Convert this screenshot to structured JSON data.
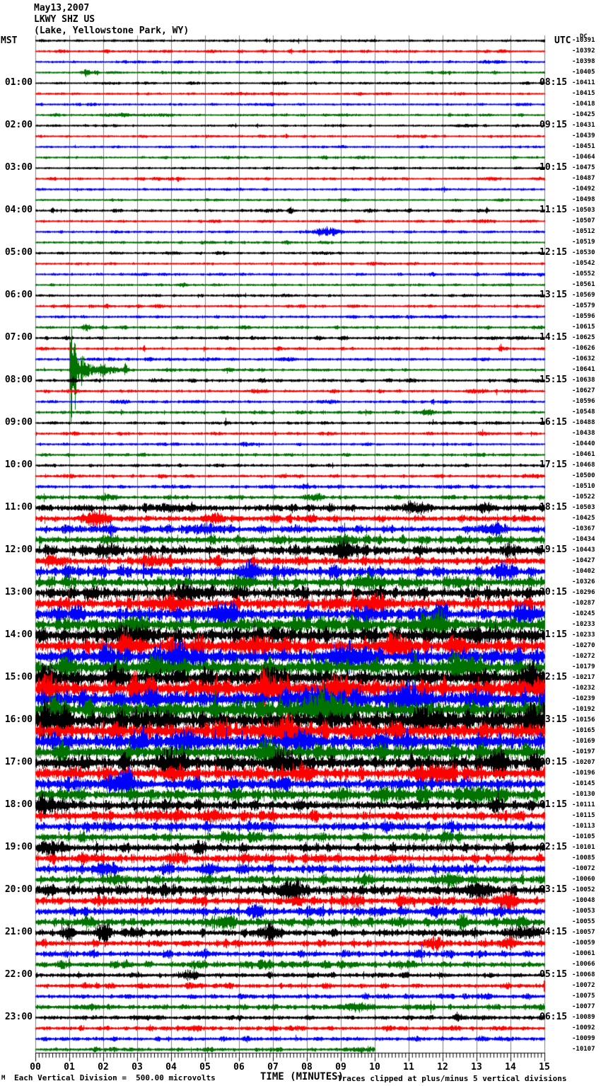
{
  "header": {
    "date": "May13,2007",
    "station": "LKWY SHZ US",
    "location": "(Lake, Yellowstone Park, WY)"
  },
  "axis": {
    "left_label": "MST",
    "right_label": "UTC",
    "dc_label": "DC",
    "x_title": "TIME (MINUTES)",
    "minute_labels": [
      "00",
      "01",
      "02",
      "03",
      "04",
      "05",
      "06",
      "07",
      "08",
      "09",
      "10",
      "11",
      "12",
      "13",
      "14",
      "15"
    ]
  },
  "footer": {
    "corner_mark": "M",
    "scale_note": "Each Vertical Division =  500.00 microvolts",
    "clip_note": "Traces clipped at plus/minus 5 vertical divisions"
  },
  "chart_data": {
    "type": "line",
    "subtype": "helicorder-seismogram",
    "title": "LKWY SHZ US webicorder, May 13 2007",
    "minutes_per_line": 15,
    "lines_per_hour": 4,
    "color_cycle": [
      "black",
      "red",
      "blue",
      "green"
    ],
    "clip_divisions": 5,
    "microvolts_per_division": 500.0,
    "colors": {
      "k": "#000000",
      "r": "#ff0000",
      "b": "#0000ff",
      "g": "#007200",
      "grid": "#808080"
    },
    "row_fields": [
      "color",
      "mst_label",
      "utc_label",
      "dc_value",
      "noise_amplitude_px",
      "events[minute,amp_px,width_min]",
      "end_minute"
    ],
    "rows": [
      [
        "k",
        null,
        null,
        "-10391",
        1.3,
        [
          [
            6.8,
            3,
            0.02
          ]
        ],
        15
      ],
      [
        "r",
        null,
        null,
        "-10392",
        1.3,
        [
          [
            2.1,
            2.5,
            0.02
          ]
        ],
        15
      ],
      [
        "b",
        null,
        null,
        "-10398",
        1.3,
        [],
        15
      ],
      [
        "g",
        null,
        null,
        "-10405",
        1.3,
        [
          [
            1.5,
            3,
            0.08
          ],
          [
            1.8,
            2.5,
            0.05
          ],
          [
            12.2,
            2,
            0.03
          ]
        ],
        15
      ],
      [
        "k",
        "01:00",
        "08:15",
        "-10411",
        1.2,
        [],
        15
      ],
      [
        "r",
        null,
        null,
        "-10415",
        1.2,
        [],
        15
      ],
      [
        "b",
        null,
        null,
        "-10418",
        1.2,
        [],
        15
      ],
      [
        "g",
        null,
        null,
        "-10425",
        1.3,
        [
          [
            12.2,
            2.5,
            0.03
          ]
        ],
        15
      ],
      [
        "k",
        "02:00",
        "09:15",
        "-10431",
        1.2,
        [],
        15
      ],
      [
        "r",
        null,
        null,
        "-10439",
        1.3,
        [
          [
            7.4,
            3,
            0.02
          ]
        ],
        15
      ],
      [
        "b",
        null,
        null,
        "-10451",
        1.2,
        [],
        15
      ],
      [
        "g",
        null,
        null,
        "-10464",
        1.3,
        [],
        15
      ],
      [
        "k",
        "03:00",
        "10:15",
        "-10475",
        1.2,
        [],
        15
      ],
      [
        "r",
        null,
        null,
        "-10487",
        1.3,
        [
          [
            4.2,
            2.5,
            0.03
          ]
        ],
        15
      ],
      [
        "b",
        null,
        null,
        "-10492",
        1.2,
        [],
        15
      ],
      [
        "g",
        null,
        null,
        "-10498",
        1.2,
        [],
        15
      ],
      [
        "k",
        "04:00",
        "11:15",
        "-10503",
        1.5,
        [
          [
            0.5,
            4,
            0.03
          ],
          [
            7.5,
            4.5,
            0.04
          ],
          [
            13.3,
            3,
            0.03
          ]
        ],
        15
      ],
      [
        "r",
        null,
        null,
        "-10507",
        1.3,
        [],
        15
      ],
      [
        "b",
        null,
        null,
        "-10512",
        1.3,
        [
          [
            8.6,
            4.5,
            0.28
          ]
        ],
        15
      ],
      [
        "g",
        null,
        null,
        "-10519",
        1.3,
        [],
        15
      ],
      [
        "k",
        "05:00",
        "12:15",
        "-10530",
        1.3,
        [],
        15
      ],
      [
        "r",
        null,
        null,
        "-10542",
        1.3,
        [],
        15
      ],
      [
        "b",
        null,
        null,
        "-10552",
        1.3,
        [
          [
            11.7,
            2.5,
            0.05
          ]
        ],
        15
      ],
      [
        "g",
        null,
        null,
        "-10561",
        1.3,
        [],
        15
      ],
      [
        "k",
        "06:00",
        "13:15",
        "-10569",
        1.3,
        [],
        15
      ],
      [
        "r",
        null,
        null,
        "-10579",
        1.4,
        [
          [
            2.1,
            3.5,
            0.02
          ]
        ],
        15
      ],
      [
        "b",
        null,
        null,
        "-10596",
        1.6,
        [],
        15
      ],
      [
        "g",
        null,
        null,
        "-10615",
        1.5,
        [
          [
            1.5,
            2.5,
            0.1
          ]
        ],
        15
      ],
      [
        "k",
        "07:00",
        "14:15",
        "-10625",
        1.6,
        [],
        15
      ],
      [
        "r",
        null,
        null,
        "-10626",
        1.5,
        [
          [
            3.2,
            4.5,
            0.02
          ],
          [
            13.7,
            5,
            0.03
          ]
        ],
        15
      ],
      [
        "b",
        null,
        null,
        "-10632",
        1.5,
        [],
        15
      ],
      [
        "g",
        null,
        null,
        "-10641",
        1.6,
        [
          [
            1.05,
            85,
            0.02
          ],
          [
            1.15,
            55,
            0.03
          ],
          [
            1.35,
            14,
            0.12
          ],
          [
            1.9,
            6,
            0.3
          ],
          [
            2.65,
            7,
            0.05
          ]
        ],
        15
      ],
      [
        "k",
        "08:00",
        "15:15",
        "-10638",
        1.8,
        [
          [
            1.1,
            4,
            0.06
          ]
        ],
        15
      ],
      [
        "r",
        null,
        null,
        "-10627",
        1.6,
        [],
        15
      ],
      [
        "b",
        null,
        null,
        "-10596",
        1.5,
        [
          [
            11.7,
            4,
            0.03
          ]
        ],
        15
      ],
      [
        "g",
        null,
        null,
        "-10548",
        1.6,
        [
          [
            11.6,
            3,
            0.15
          ]
        ],
        15
      ],
      [
        "k",
        "09:00",
        "16:15",
        "-10488",
        1.5,
        [
          [
            5.6,
            5,
            0.025
          ]
        ],
        15
      ],
      [
        "r",
        null,
        null,
        "-10438",
        1.6,
        [],
        15
      ],
      [
        "b",
        null,
        null,
        "-10440",
        1.5,
        [],
        15
      ],
      [
        "g",
        null,
        null,
        "-10461",
        1.5,
        [],
        15
      ],
      [
        "k",
        "10:00",
        "17:15",
        "-10468",
        1.7,
        [],
        15
      ],
      [
        "r",
        null,
        null,
        "-10500",
        1.7,
        [],
        15
      ],
      [
        "b",
        null,
        null,
        "-10510",
        1.7,
        [],
        15
      ],
      [
        "g",
        null,
        null,
        "-10522",
        2.2,
        [
          [
            2.0,
            2,
            0.2
          ]
        ],
        15
      ],
      [
        "k",
        "11:00",
        "18:15",
        "-10503",
        4.0,
        [
          [
            3.9,
            4,
            0.3
          ],
          [
            11.2,
            5,
            0.3
          ],
          [
            13.2,
            4,
            0.2
          ]
        ],
        15
      ],
      [
        "r",
        null,
        null,
        "-10425",
        4.2,
        [
          [
            1.8,
            7,
            0.25
          ],
          [
            5.3,
            5,
            0.2
          ]
        ],
        15
      ],
      [
        "b",
        null,
        null,
        "-10367",
        4.2,
        [
          [
            2.2,
            6,
            0.1
          ],
          [
            5.0,
            5,
            0.3
          ],
          [
            13.5,
            5,
            0.2
          ]
        ],
        15
      ],
      [
        "g",
        null,
        null,
        "-10434",
        4.8,
        [
          [
            9.0,
            4,
            0.3
          ]
        ],
        15
      ],
      [
        "k",
        "12:00",
        "19:15",
        "-10443",
        5.5,
        [
          [
            2.0,
            5,
            0.3
          ],
          [
            9.0,
            5,
            0.4
          ],
          [
            14.0,
            5,
            0.2
          ]
        ],
        15
      ],
      [
        "r",
        null,
        null,
        "-10427",
        5.5,
        [
          [
            0.5,
            5,
            0.2
          ],
          [
            3.5,
            5,
            0.3
          ]
        ],
        15
      ],
      [
        "b",
        null,
        null,
        "-10402",
        6.5,
        [
          [
            6.3,
            8,
            0.25
          ],
          [
            13.8,
            6,
            0.2
          ]
        ],
        15
      ],
      [
        "g",
        null,
        null,
        "-10326",
        6.5,
        [
          [
            6.0,
            6,
            0.2
          ],
          [
            9.9,
            6,
            0.3
          ]
        ],
        15
      ],
      [
        "k",
        "13:00",
        "20:15",
        "-10296",
        7.5,
        [
          [
            4.5,
            6,
            0.3
          ]
        ],
        15
      ],
      [
        "r",
        null,
        null,
        "-10287",
        7.5,
        [
          [
            4.0,
            8,
            0.3
          ],
          [
            10.0,
            8,
            0.3
          ]
        ],
        15
      ],
      [
        "b",
        null,
        null,
        "-10245",
        8.5,
        [
          [
            5.5,
            8,
            0.3
          ],
          [
            14.5,
            8,
            0.2
          ]
        ],
        15
      ],
      [
        "g",
        null,
        null,
        "-10233",
        8.5,
        [
          [
            3.0,
            6,
            0.3
          ],
          [
            11.7,
            10,
            0.3
          ]
        ],
        15
      ],
      [
        "k",
        "14:00",
        "21:15",
        "-10233",
        9.5,
        [
          [
            2.8,
            8,
            0.4
          ],
          [
            13.0,
            6,
            0.3
          ]
        ],
        15
      ],
      [
        "r",
        null,
        null,
        "-10270",
        9.5,
        [
          [
            2.7,
            13,
            0.15
          ],
          [
            6.5,
            8,
            0.3
          ],
          [
            10.5,
            8,
            0.3
          ]
        ],
        15
      ],
      [
        "b",
        null,
        null,
        "-10272",
        10,
        [
          [
            4.2,
            10,
            0.3
          ],
          [
            9.2,
            8,
            0.4
          ]
        ],
        15
      ],
      [
        "g",
        null,
        null,
        "-10179",
        10,
        [
          [
            3.5,
            12,
            0.25
          ],
          [
            12.5,
            10,
            0.3
          ]
        ],
        15
      ],
      [
        "k",
        "15:00",
        "22:15",
        "-10217",
        11,
        [
          [
            0.3,
            10,
            0.2
          ],
          [
            7.0,
            8,
            0.3
          ],
          [
            14.5,
            10,
            0.2
          ]
        ],
        15
      ],
      [
        "r",
        null,
        null,
        "-10232",
        11,
        [
          [
            6.8,
            15,
            0.25
          ],
          [
            9.0,
            10,
            0.4
          ]
        ],
        15
      ],
      [
        "b",
        null,
        null,
        "-10239",
        11,
        [
          [
            8.2,
            12,
            0.3
          ],
          [
            11.0,
            15,
            0.3
          ]
        ],
        15
      ],
      [
        "g",
        null,
        null,
        "-10192",
        11,
        [
          [
            0.5,
            10,
            0.2
          ],
          [
            8.5,
            12,
            0.4
          ]
        ],
        15
      ],
      [
        "k",
        "16:00",
        "23:15",
        "-10156",
        12,
        [
          [
            0.3,
            18,
            0.15
          ],
          [
            11.5,
            10,
            0.3
          ],
          [
            14.7,
            12,
            0.2
          ]
        ],
        15
      ],
      [
        "r",
        null,
        null,
        "-10165",
        11,
        [
          [
            7.3,
            10,
            0.4
          ]
        ],
        15
      ],
      [
        "b",
        null,
        null,
        "-10169",
        10,
        [
          [
            4.5,
            10,
            0.3
          ],
          [
            7.8,
            8,
            0.3
          ]
        ],
        15
      ],
      [
        "g",
        null,
        null,
        "-10197",
        10,
        [
          [
            6.8,
            13,
            0.25
          ]
        ],
        15
      ],
      [
        "k",
        "17:00",
        "00:15",
        "-10207",
        9,
        [
          [
            4.0,
            10,
            0.3
          ],
          [
            7.3,
            10,
            0.25
          ],
          [
            13.5,
            6,
            0.3
          ]
        ],
        15
      ],
      [
        "r",
        null,
        null,
        "-10196",
        8.5,
        [],
        15
      ],
      [
        "b",
        null,
        null,
        "-10145",
        7.5,
        [
          [
            2.5,
            8,
            0.3
          ]
        ],
        15
      ],
      [
        "g",
        null,
        null,
        "-10130",
        7.5,
        [
          [
            13.0,
            8,
            0.3
          ]
        ],
        15
      ],
      [
        "k",
        "18:00",
        "01:15",
        "-10111",
        6.5,
        [
          [
            0.3,
            8,
            0.2
          ]
        ],
        15
      ],
      [
        "r",
        null,
        null,
        "-10115",
        6,
        [
          [
            5.2,
            6,
            0.25
          ]
        ],
        15
      ],
      [
        "b",
        null,
        null,
        "-10113",
        5.5,
        [],
        15
      ],
      [
        "g",
        null,
        null,
        "-10105",
        5,
        [
          [
            5.7,
            5,
            0.2
          ]
        ],
        15
      ],
      [
        "k",
        "19:00",
        "02:15",
        "-10101",
        5.5,
        [
          [
            0.4,
            6,
            0.25
          ]
        ],
        15
      ],
      [
        "r",
        null,
        null,
        "-10085",
        5.5,
        [],
        15
      ],
      [
        "b",
        null,
        null,
        "-10072",
        5.5,
        [],
        15
      ],
      [
        "g",
        null,
        null,
        "-10060",
        5,
        [],
        15
      ],
      [
        "k",
        "20:00",
        "03:15",
        "-10052",
        6.5,
        [
          [
            7.5,
            7,
            0.3
          ],
          [
            13.0,
            7,
            0.3
          ]
        ],
        15
      ],
      [
        "r",
        null,
        null,
        "-10048",
        5.5,
        [
          [
            13.9,
            10,
            0.15
          ]
        ],
        15
      ],
      [
        "b",
        null,
        null,
        "-10053",
        5.5,
        [],
        15
      ],
      [
        "g",
        null,
        null,
        "-10055",
        5.5,
        [
          [
            5.5,
            6,
            0.3
          ]
        ],
        15
      ],
      [
        "k",
        "21:00",
        "04:15",
        "-10057",
        4.5,
        [
          [
            1.0,
            8,
            0.1
          ],
          [
            2.0,
            12,
            0.15
          ],
          [
            6.9,
            8,
            0.2
          ],
          [
            14.2,
            6,
            0.2
          ]
        ],
        15
      ],
      [
        "r",
        null,
        null,
        "-10059",
        4,
        [
          [
            11.7,
            6,
            0.2
          ],
          [
            13.9,
            7,
            0.15
          ]
        ],
        15
      ],
      [
        "b",
        null,
        null,
        "-10061",
        3.8,
        [],
        15
      ],
      [
        "g",
        null,
        null,
        "-10066",
        3.8,
        [],
        15
      ],
      [
        "k",
        "22:00",
        "05:15",
        "-10068",
        3,
        [
          [
            4.5,
            4,
            0.2
          ]
        ],
        15
      ],
      [
        "r",
        null,
        null,
        "-10072",
        2.8,
        [],
        15
      ],
      [
        "b",
        null,
        null,
        "-10075",
        2.8,
        [],
        15
      ],
      [
        "g",
        null,
        null,
        "-10077",
        3,
        [
          [
            9.5,
            4,
            0.3
          ]
        ],
        15
      ],
      [
        "k",
        "23:00",
        "06:15",
        "-10089",
        2.4,
        [
          [
            12.5,
            4,
            0.1
          ]
        ],
        15
      ],
      [
        "r",
        null,
        null,
        "-10092",
        2.4,
        [],
        15
      ],
      [
        "b",
        null,
        null,
        "-10099",
        2.2,
        [],
        15
      ],
      [
        "g",
        null,
        null,
        "-10107",
        2.2,
        [],
        10
      ]
    ]
  }
}
